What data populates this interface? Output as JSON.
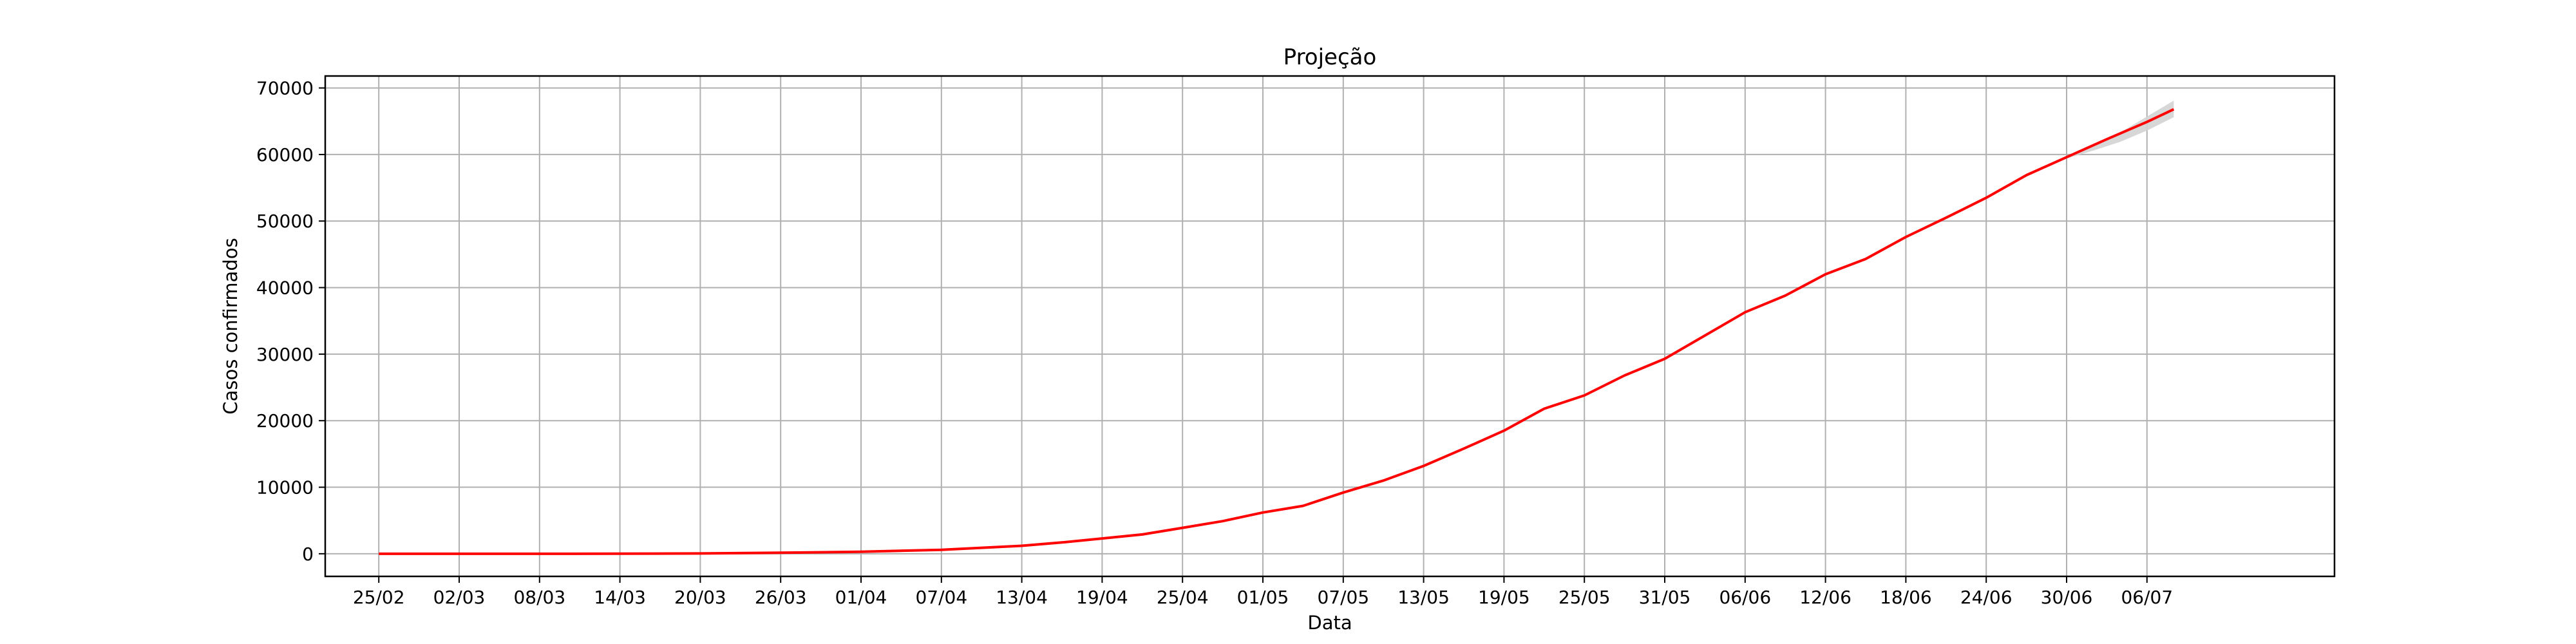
{
  "chart_data": {
    "type": "line",
    "title": "Projeção",
    "xlabel": "Data",
    "ylabel": "Casos confirmados",
    "x_tick_labels": [
      "25/02",
      "02/03",
      "08/03",
      "14/03",
      "20/03",
      "26/03",
      "01/04",
      "07/04",
      "13/04",
      "19/04",
      "25/04",
      "01/05",
      "07/05",
      "13/05",
      "19/05",
      "25/05",
      "31/05",
      "06/06",
      "12/06",
      "18/06",
      "24/06",
      "30/06",
      "06/07"
    ],
    "y_ticks": [
      0,
      10000,
      20000,
      30000,
      40000,
      50000,
      60000,
      70000
    ],
    "ylim": [
      -3400,
      71800
    ],
    "xlim": [
      "2020-02-21",
      "2020-07-20"
    ],
    "grid": true,
    "series": [
      {
        "color": "#ff0000",
        "x": [
          "2020-02-25",
          "2020-03-10",
          "2020-03-20",
          "2020-03-26",
          "2020-04-01",
          "2020-04-07",
          "2020-04-10",
          "2020-04-13",
          "2020-04-16",
          "2020-04-19",
          "2020-04-22",
          "2020-04-25",
          "2020-04-28",
          "2020-05-01",
          "2020-05-04",
          "2020-05-07",
          "2020-05-10",
          "2020-05-13",
          "2020-05-16",
          "2020-05-19",
          "2020-05-22",
          "2020-05-25",
          "2020-05-28",
          "2020-05-31",
          "2020-06-03",
          "2020-06-06",
          "2020-06-09",
          "2020-06-12",
          "2020-06-15",
          "2020-06-18",
          "2020-06-21",
          "2020-06-24",
          "2020-06-27",
          "2020-06-30",
          "2020-07-03",
          "2020-07-06",
          "2020-07-08"
        ],
        "y": [
          0,
          0,
          50,
          150,
          300,
          600,
          900,
          1200,
          1700,
          2300,
          2900,
          3900,
          4900,
          6200,
          7200,
          9200,
          11000,
          13200,
          15800,
          18500,
          21800,
          23800,
          26800,
          29300,
          32800,
          36300,
          38800,
          42000,
          44300,
          47600,
          50500,
          53500,
          56900,
          59600,
          62300,
          64900,
          66800
        ]
      }
    ],
    "confidence_band": {
      "color": "#d3d3d3",
      "x": [
        "2020-06-30",
        "2020-07-02",
        "2020-07-04",
        "2020-07-06",
        "2020-07-08"
      ],
      "lower": [
        59400,
        60600,
        61900,
        63600,
        65600
      ],
      "upper": [
        59800,
        61600,
        63300,
        65700,
        68100
      ]
    }
  }
}
